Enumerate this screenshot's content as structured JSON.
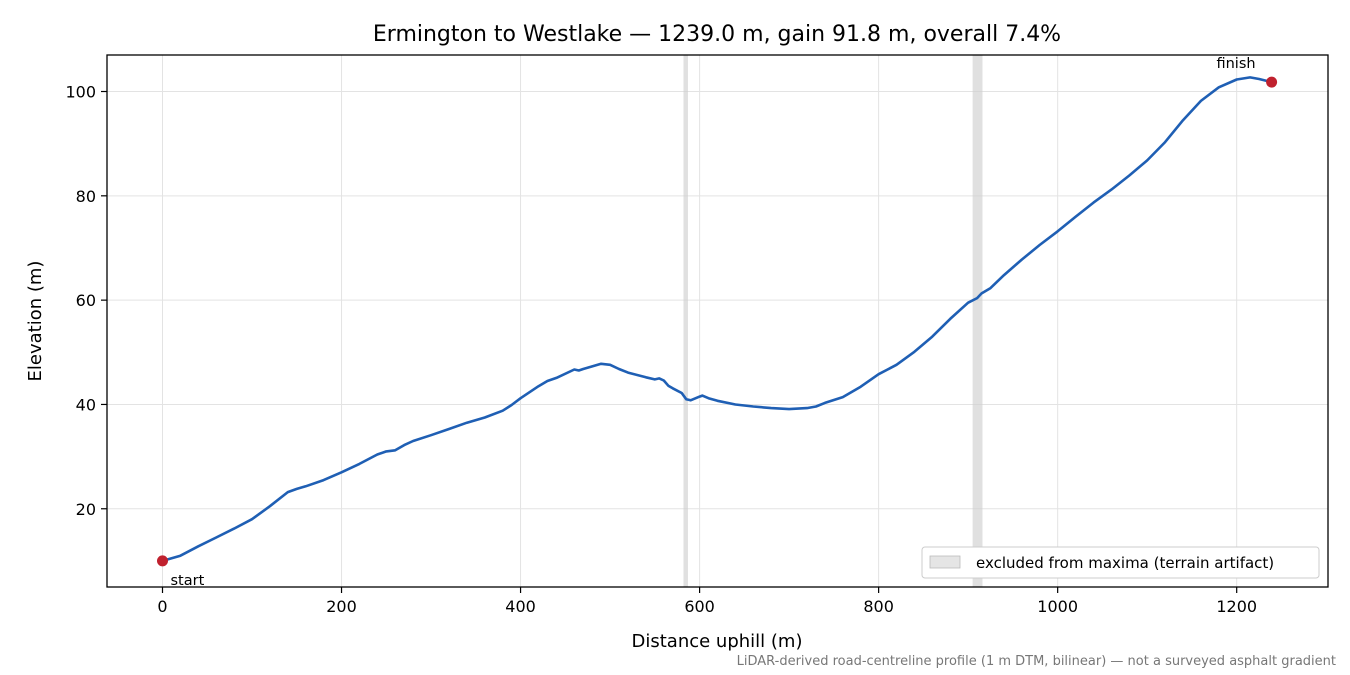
{
  "chart_data": {
    "type": "line",
    "title": "Ermington to Westlake — 1239.0 m, gain 91.8 m, overall 7.4%",
    "xlabel": "Distance uphill (m)",
    "ylabel": "Elevation (m)",
    "xlim": [
      -62,
      1302
    ],
    "ylim": [
      5,
      107
    ],
    "xticks": [
      0,
      200,
      400,
      600,
      800,
      1000,
      1200
    ],
    "yticks": [
      20,
      40,
      60,
      80,
      100
    ],
    "grid": true,
    "series": [
      {
        "color": "#1f5fb4",
        "x": [
          0,
          20,
          40,
          60,
          80,
          100,
          120,
          140,
          150,
          160,
          180,
          200,
          220,
          240,
          250,
          260,
          270,
          280,
          300,
          320,
          340,
          360,
          380,
          390,
          400,
          420,
          430,
          440,
          460,
          465,
          470,
          480,
          490,
          500,
          510,
          520,
          540,
          550,
          555,
          560,
          565,
          570,
          580,
          585,
          590,
          600,
          603,
          610,
          620,
          640,
          660,
          680,
          700,
          720,
          730,
          740,
          760,
          780,
          800,
          810,
          820,
          840,
          860,
          880,
          900,
          910,
          915,
          925,
          940,
          960,
          980,
          1000,
          1020,
          1040,
          1060,
          1080,
          1100,
          1120,
          1140,
          1160,
          1180,
          1200,
          1215,
          1225,
          1239
        ],
        "y": [
          10,
          11,
          12.8,
          14.5,
          16.2,
          18,
          20.5,
          23.2,
          23.8,
          24.3,
          25.5,
          27,
          28.6,
          30.4,
          31,
          31.2,
          32.2,
          33,
          34.1,
          35.3,
          36.5,
          37.5,
          38.8,
          39.9,
          41.2,
          43.5,
          44.5,
          45.1,
          46.7,
          46.5,
          46.8,
          47.3,
          47.8,
          47.6,
          46.8,
          46.1,
          45.2,
          44.8,
          45,
          44.6,
          43.6,
          43.1,
          42.2,
          41,
          40.8,
          41.5,
          41.7,
          41.2,
          40.7,
          40,
          39.6,
          39.3,
          39.1,
          39.3,
          39.6,
          40.3,
          41.4,
          43.4,
          45.8,
          46.7,
          47.6,
          50.1,
          53,
          56.4,
          59.5,
          60.4,
          61.3,
          62.3,
          64.8,
          67.8,
          70.6,
          73.2,
          76,
          78.7,
          81.2,
          83.9,
          86.8,
          90.3,
          94.5,
          98.2,
          100.8,
          102.3,
          102.7,
          102.4,
          101.8
        ]
      }
    ],
    "excluded_bands": [
      [
        582,
        587
      ],
      [
        905,
        916
      ]
    ],
    "markers": [
      {
        "x": 0,
        "y": 10,
        "label": "start",
        "color": "#c0212e"
      },
      {
        "x": 1239,
        "y": 101.8,
        "label": "finish",
        "color": "#c0212e"
      }
    ],
    "legend": {
      "label": "excluded from maxima (terrain artifact)",
      "placement": "lower-right"
    },
    "footnote": "LiDAR-derived road-centreline profile (1 m DTM, bilinear) — not a surveyed asphalt gradient"
  }
}
